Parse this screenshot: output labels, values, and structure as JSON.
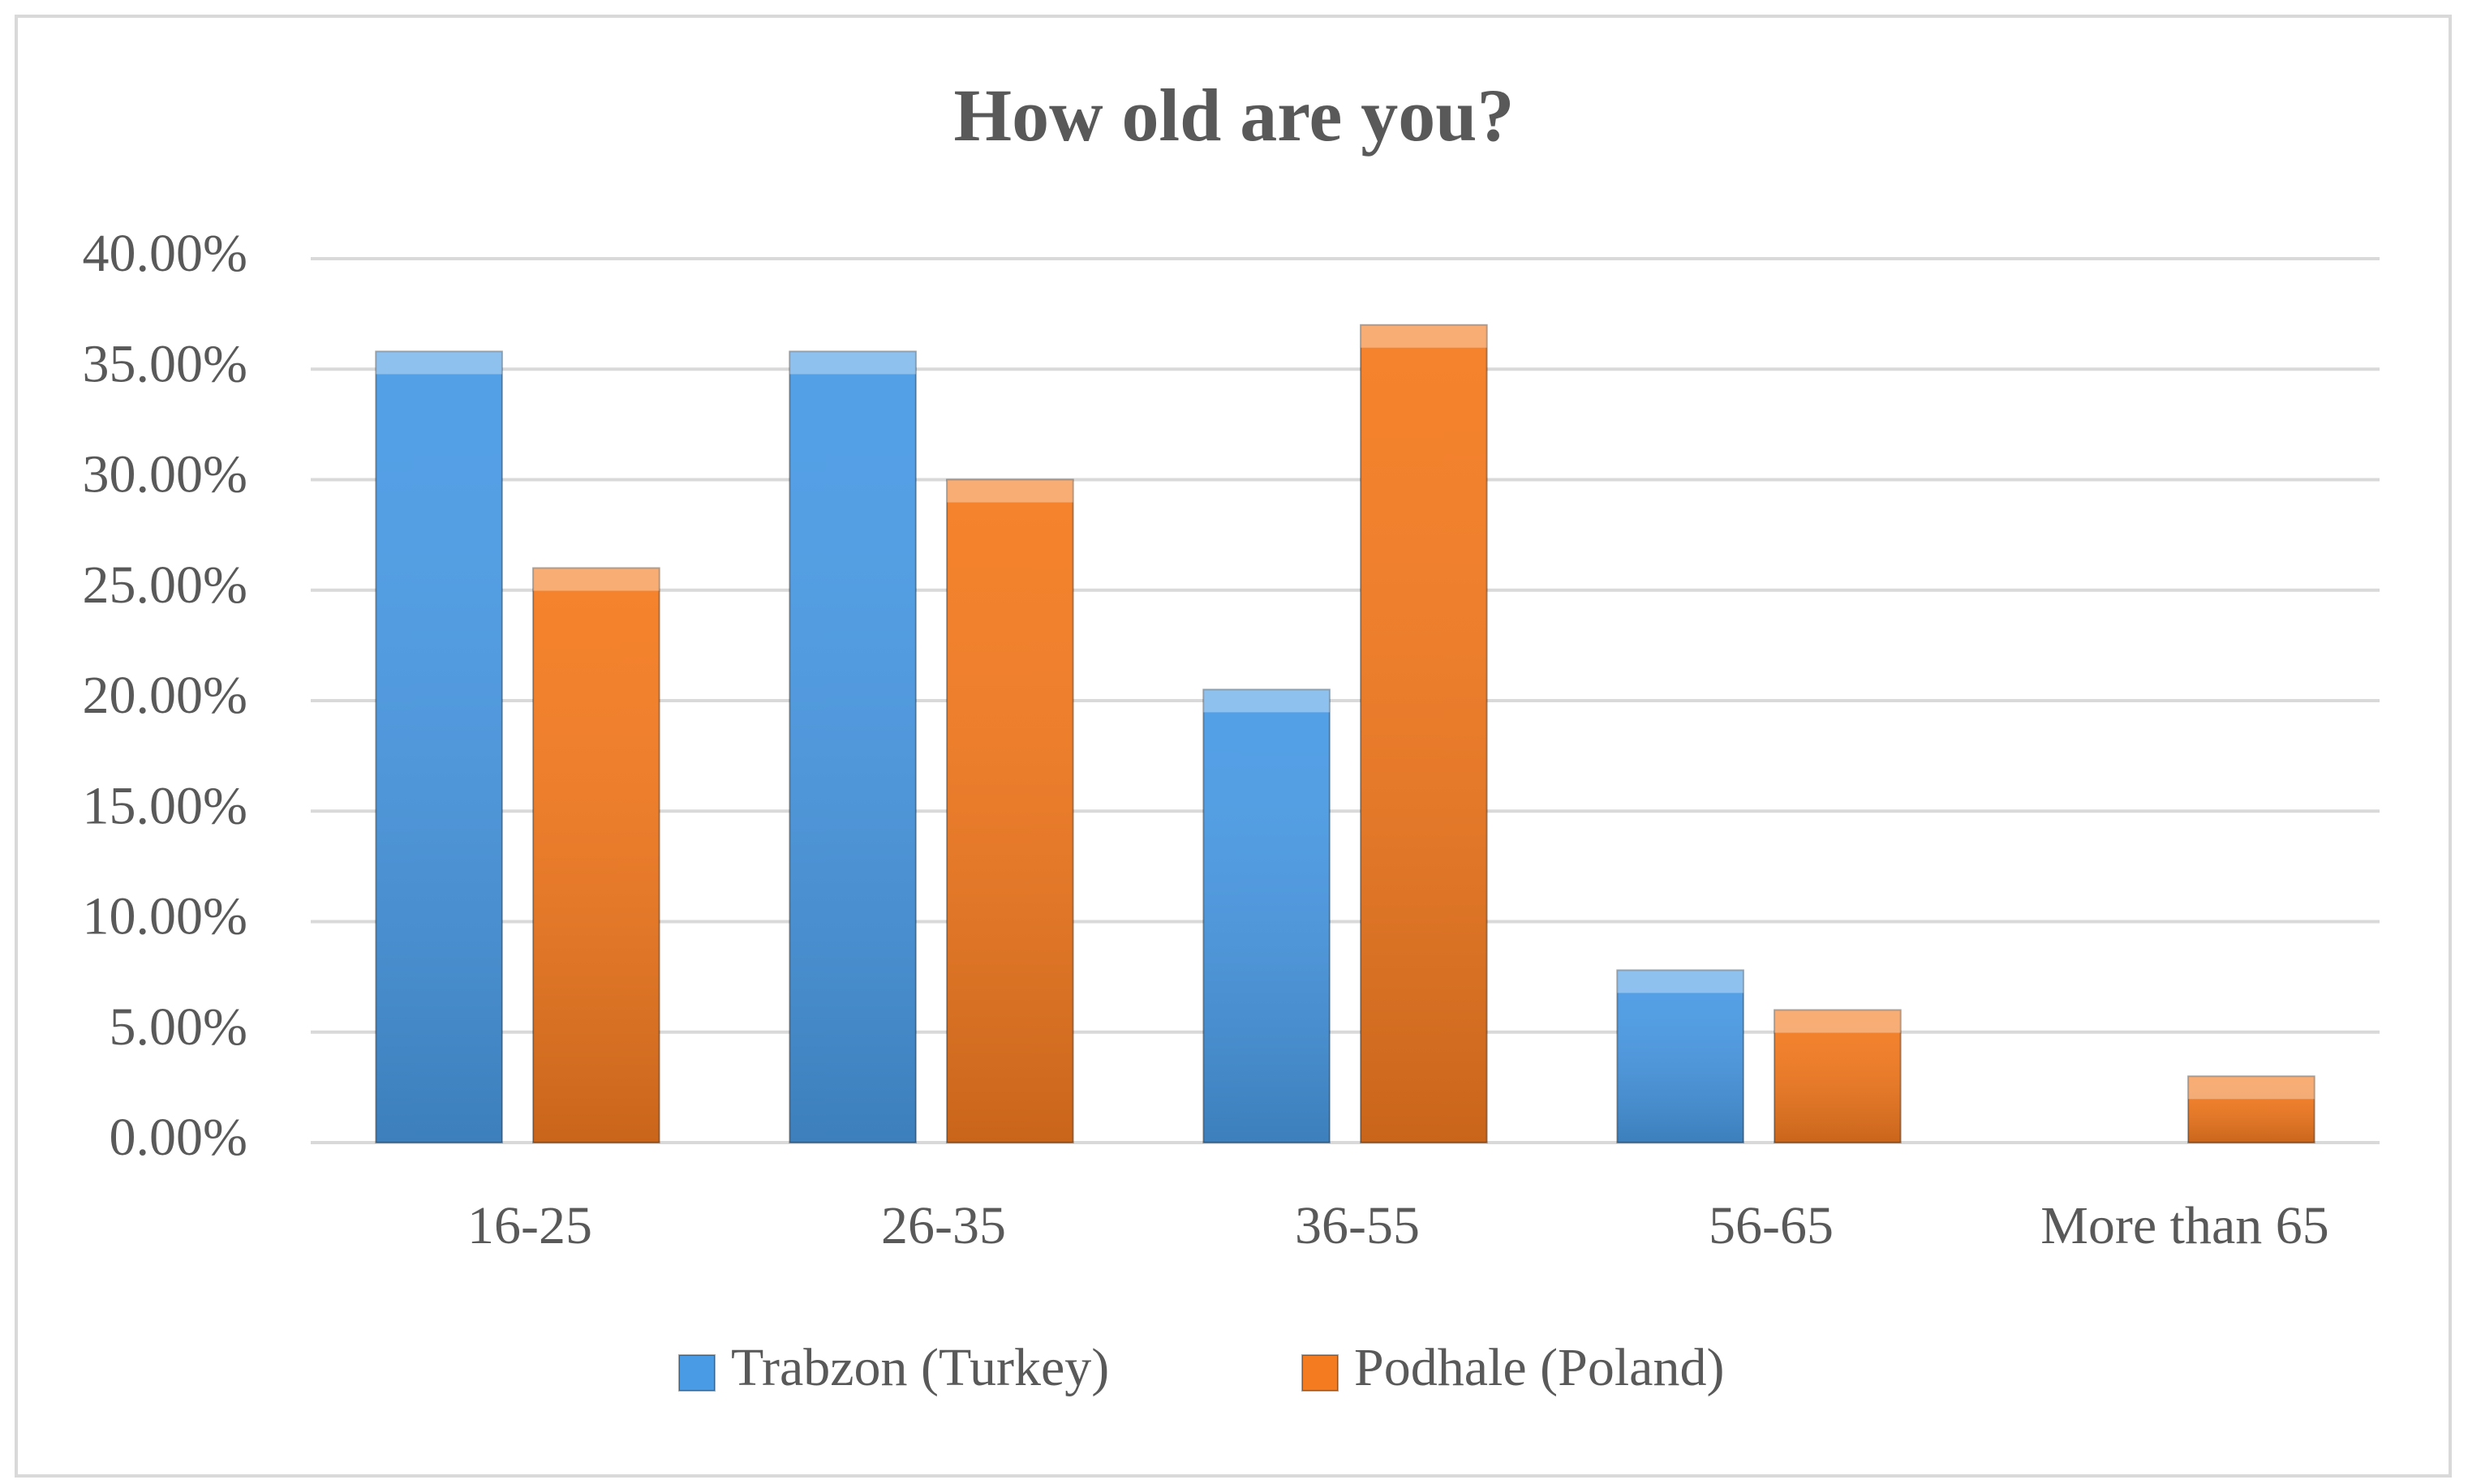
{
  "chart_data": {
    "type": "bar",
    "title": "How old are you?",
    "categories": [
      "16-25",
      "26-35",
      "36-55",
      "56-65",
      "More than 65"
    ],
    "series": [
      {
        "name": "Trabzon (Turkey)",
        "color": "#4a9be6",
        "values": [
          35.8,
          35.8,
          20.5,
          7.8,
          0
        ]
      },
      {
        "name": "Podhale (Poland)",
        "color": "#f57b20",
        "values": [
          26,
          30,
          37,
          6,
          3
        ]
      }
    ],
    "ylim": [
      0,
      40
    ],
    "yticks": [
      {
        "value": 0,
        "label": "0.00%"
      },
      {
        "value": 5,
        "label": "5.00%"
      },
      {
        "value": 10,
        "label": "10.00%"
      },
      {
        "value": 15,
        "label": "15.00%"
      },
      {
        "value": 20,
        "label": "20.00%"
      },
      {
        "value": 25,
        "label": "25.00%"
      },
      {
        "value": 30,
        "label": "30.00%"
      },
      {
        "value": 35,
        "label": "35.00%"
      },
      {
        "value": 40,
        "label": "40.00%"
      }
    ],
    "grid": true,
    "legend": "bottom"
  }
}
